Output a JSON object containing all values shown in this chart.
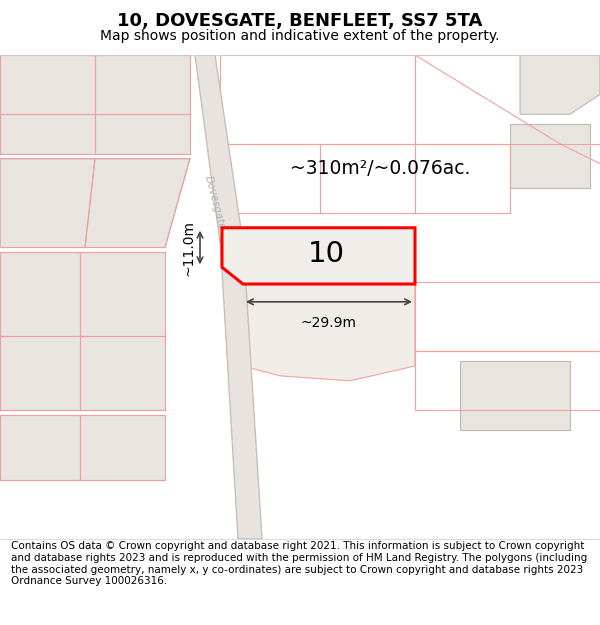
{
  "title": "10, DOVESGATE, BENFLEET, SS7 5TA",
  "subtitle": "Map shows position and indicative extent of the property.",
  "footer": "Contains OS data © Crown copyright and database right 2021. This information is subject to Crown copyright and database rights 2023 and is reproduced with the permission of HM Land Registry. The polygons (including the associated geometry, namely x, y co-ordinates) are subject to Crown copyright and database rights 2023 Ordnance Survey 100026316.",
  "area_label": "~310m²/~0.076ac.",
  "house_number": "10",
  "dim_width": "~29.9m",
  "dim_height": "~11.0m",
  "map_bg": "#f7f5f3",
  "plot_fill": "#f0eee9",
  "plot_edge": "#ff0000",
  "plot_edge_width": 2.2,
  "dim_color": "#444444",
  "pink": "#f0a0a0",
  "building_fill": "#e8e5e0",
  "building_edge": "#c0b8b0",
  "road_fill": "#e0d8d0",
  "road_edge": "#d0c8c0",
  "road_label_color": "#b0b0b0",
  "title_fontsize": 13,
  "subtitle_fontsize": 10,
  "footer_fontsize": 7.5
}
